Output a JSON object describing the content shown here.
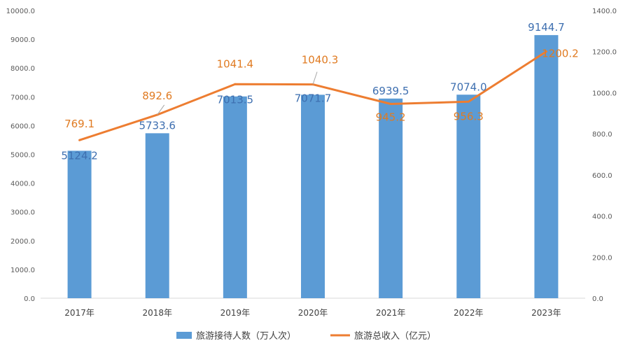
{
  "chart_data": {
    "type": "bar+line",
    "categories": [
      "2017年",
      "2018年",
      "2019年",
      "2020年",
      "2021年",
      "2022年",
      "2023年"
    ],
    "series": [
      {
        "name": "旅游接待人数（万人次）",
        "type": "bar",
        "axis": "left",
        "color": "#5b9bd5",
        "values": [
          5124.2,
          5733.6,
          7013.5,
          7071.7,
          6939.5,
          7074.0,
          9144.7
        ],
        "labels": [
          "5124.2",
          "5733.6",
          "7013.5",
          "7071.7",
          "6939.5",
          "7074.0",
          "9144.7"
        ]
      },
      {
        "name": "旅游总收入（亿元）",
        "type": "line",
        "axis": "right",
        "color": "#ed7d31",
        "values": [
          769.1,
          892.6,
          1041.4,
          1040.3,
          945.2,
          956.3,
          1200.2
        ],
        "labels": [
          "769.1",
          "892.6",
          "1041.4",
          "1040.3",
          "945.2",
          "956.3",
          "1200.2"
        ]
      }
    ],
    "y_left": {
      "min": 0,
      "max": 10000,
      "ticks": [
        "0.0",
        "1000.0",
        "2000.0",
        "3000.0",
        "4000.0",
        "5000.0",
        "6000.0",
        "7000.0",
        "8000.0",
        "9000.0",
        "10000.0"
      ]
    },
    "y_right": {
      "min": 0,
      "max": 1400,
      "ticks": [
        "0.0",
        "200.0",
        "400.0",
        "600.0",
        "800.0",
        "1000.0",
        "1200.0",
        "1400.0"
      ]
    },
    "grid": false,
    "legend": "bottom-center"
  }
}
